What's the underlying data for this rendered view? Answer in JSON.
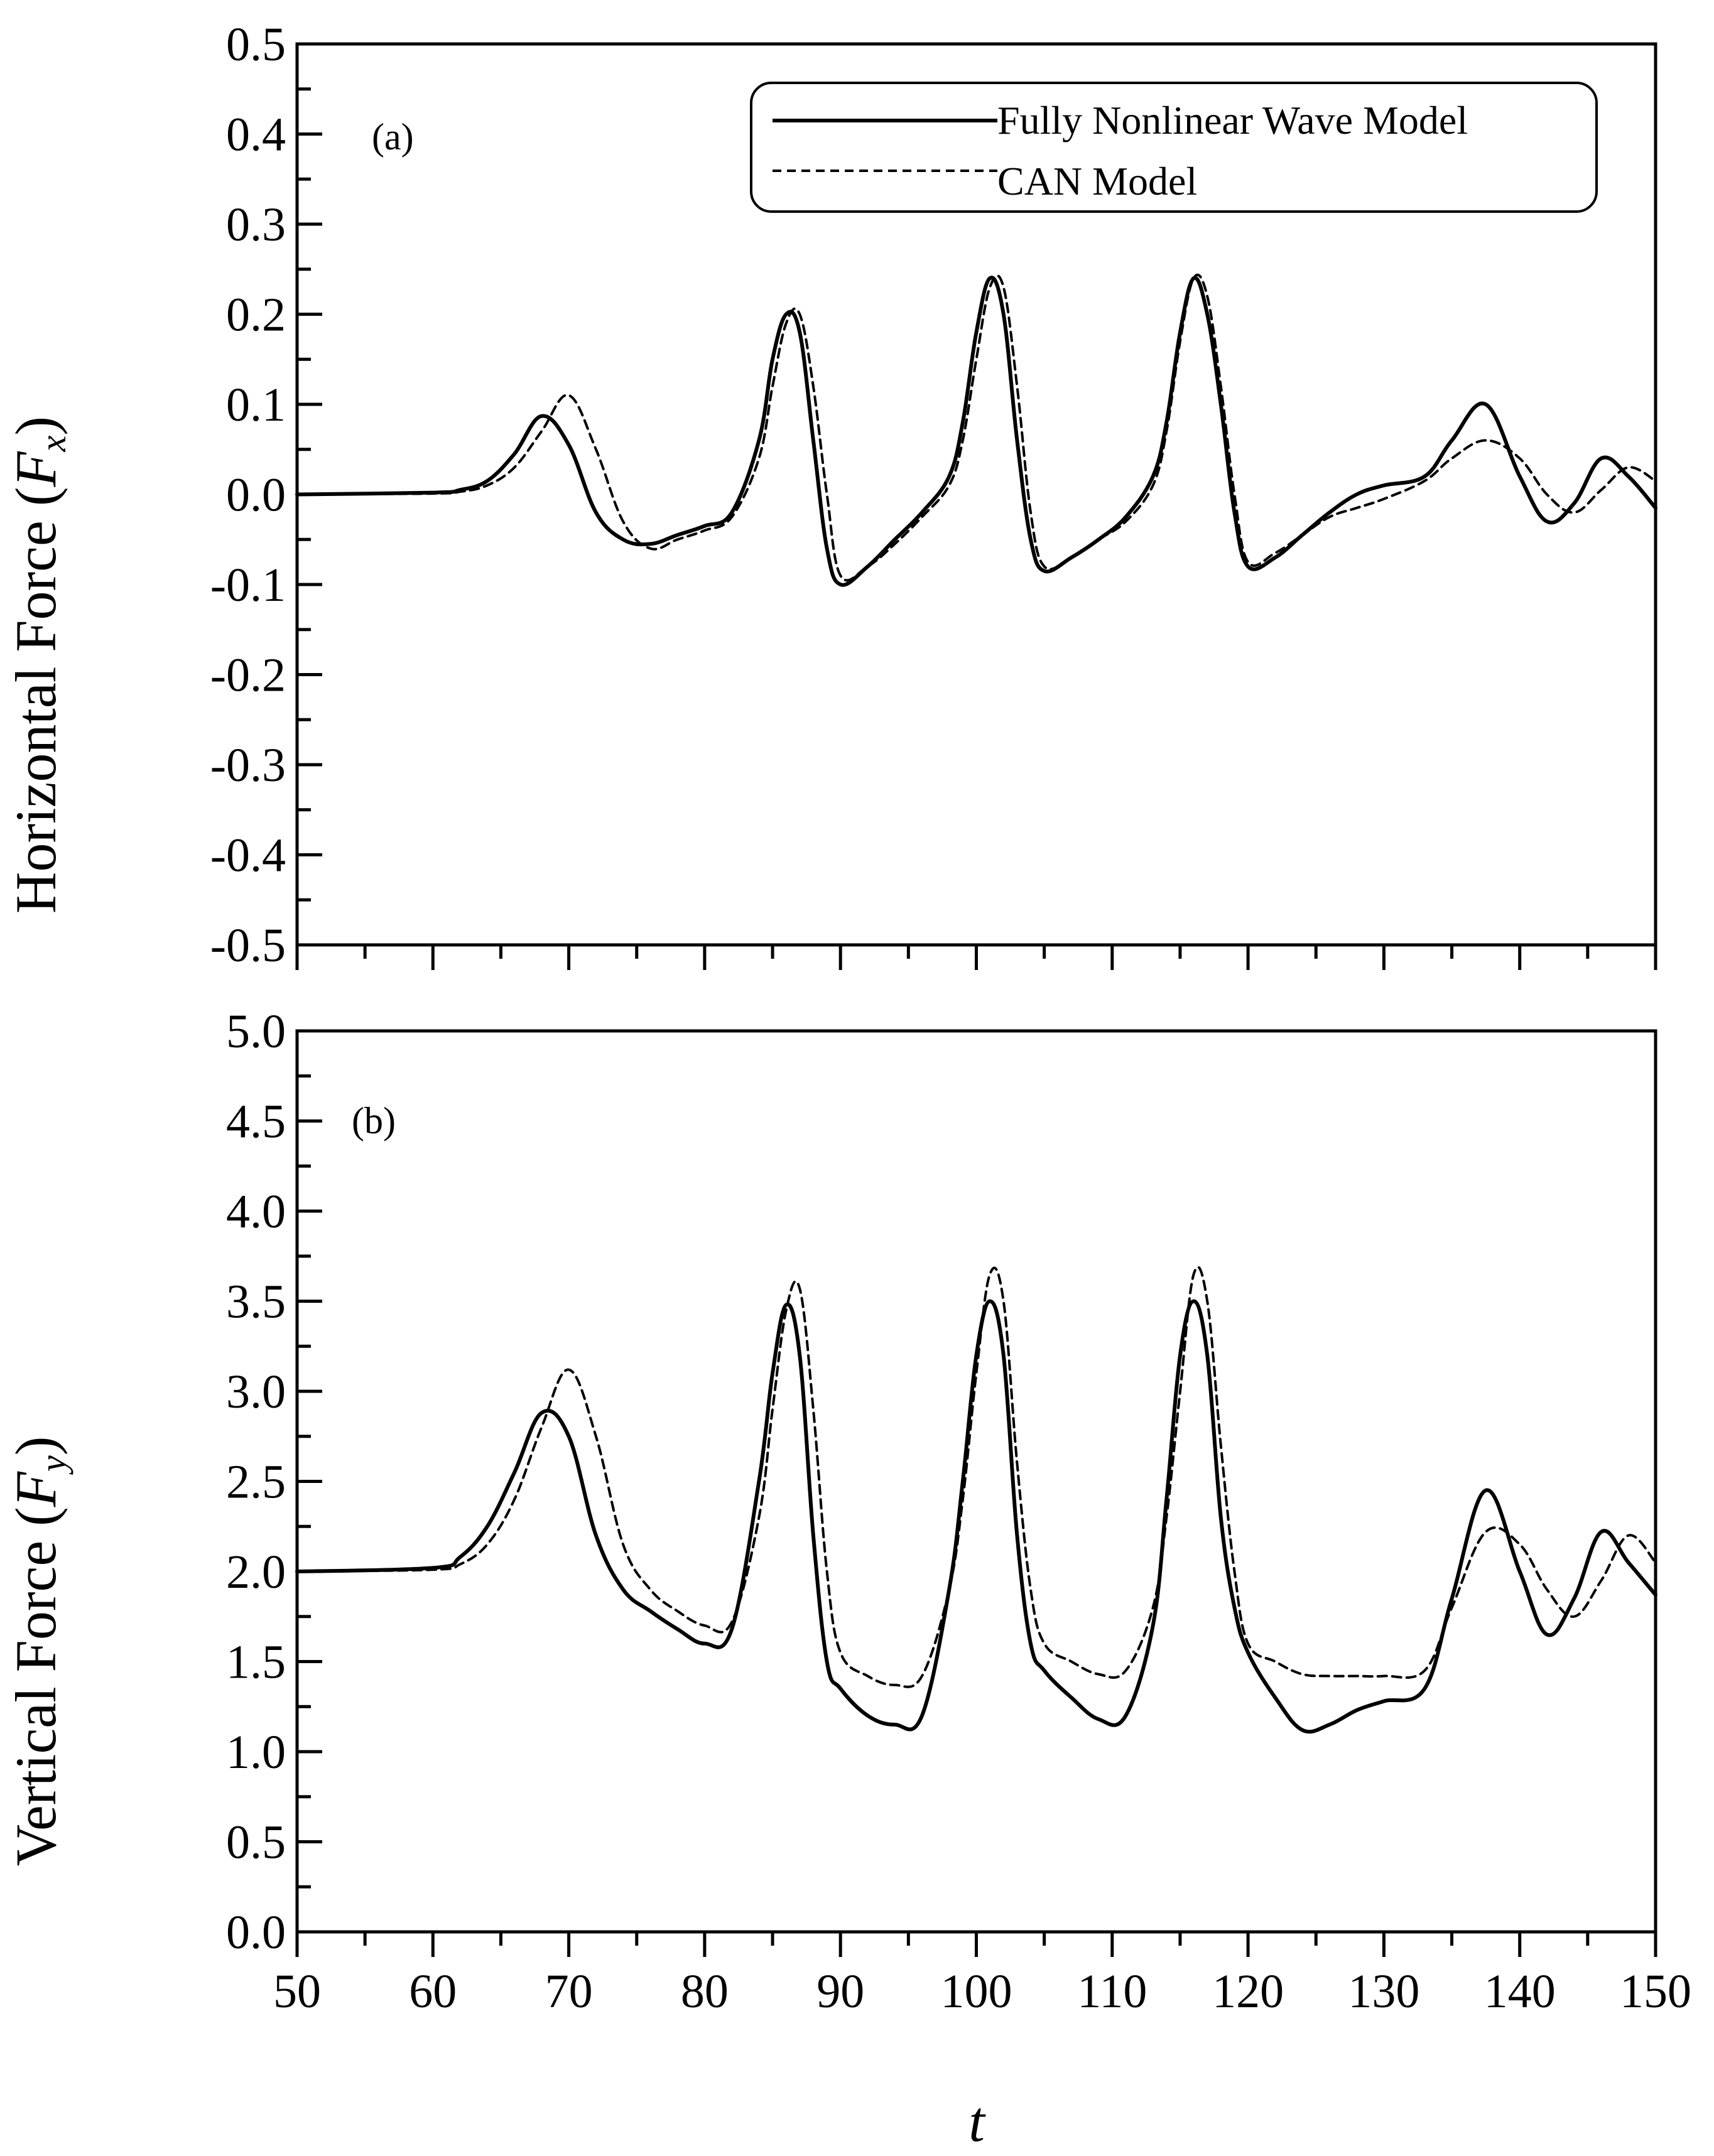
{
  "chart_data": [
    {
      "type": "line",
      "panel_label": "(a)",
      "xlabel": "",
      "ylabel": "Horizontal Force (",
      "ylabel_var": "F",
      "ylabel_sub": "x",
      "ylabel_close": ")",
      "xlim": [
        50,
        150
      ],
      "ylim": [
        -0.5,
        0.5
      ],
      "y_ticks": [
        "-0.5",
        "-0.4",
        "-0.3",
        "-0.2",
        "-0.1",
        "0.0",
        "0.1",
        "0.2",
        "0.3",
        "0.4",
        "0.5"
      ],
      "grid": false,
      "legend_position": "top-right",
      "series": [
        {
          "name": "Fully Nonlinear Wave Model",
          "style": "solid",
          "x": [
            50,
            60,
            62,
            64,
            66,
            68,
            70,
            72,
            74,
            76,
            78,
            80,
            82,
            84,
            85,
            86,
            87,
            88,
            89,
            90,
            92,
            94,
            96,
            98,
            99,
            100,
            101,
            102,
            103,
            104,
            105,
            107,
            109,
            111,
            113,
            114,
            115,
            116,
            117,
            118,
            119,
            120,
            122,
            124,
            126,
            128,
            130,
            133,
            135,
            137.5,
            140,
            142,
            144,
            146,
            148,
            150
          ],
          "y": [
            0,
            0.002,
            0.005,
            0.015,
            0.045,
            0.087,
            0.055,
            -0.02,
            -0.05,
            -0.055,
            -0.045,
            -0.035,
            -0.02,
            0.06,
            0.15,
            0.2,
            0.18,
            0.06,
            -0.06,
            -0.1,
            -0.08,
            -0.05,
            -0.02,
            0.02,
            0.08,
            0.18,
            0.24,
            0.2,
            0.06,
            -0.05,
            -0.085,
            -0.07,
            -0.05,
            -0.025,
            0.02,
            0.08,
            0.18,
            0.24,
            0.2,
            0.1,
            -0.02,
            -0.08,
            -0.07,
            -0.045,
            -0.02,
            0,
            0.01,
            0.02,
            0.06,
            0.1,
            0.02,
            -0.03,
            -0.01,
            0.04,
            0.02,
            -0.015
          ]
        },
        {
          "name": "CAN Model",
          "style": "dashed",
          "x": [
            50,
            60,
            62,
            64,
            66,
            68,
            70,
            72,
            74,
            76,
            78,
            80,
            82,
            84,
            85,
            86,
            87,
            88,
            89,
            90,
            92,
            94,
            96,
            98,
            99,
            100,
            101,
            102,
            103,
            104,
            105,
            107,
            109,
            111,
            113,
            114,
            115,
            116,
            117,
            118,
            119,
            120,
            122,
            124,
            126,
            128,
            130,
            133,
            135,
            137.5,
            140,
            142,
            144,
            146,
            148,
            150
          ],
          "y": [
            0,
            0.001,
            0.003,
            0.01,
            0.03,
            0.07,
            0.11,
            0.05,
            -0.03,
            -0.06,
            -0.05,
            -0.04,
            -0.025,
            0.04,
            0.12,
            0.19,
            0.2,
            0.12,
            0,
            -0.09,
            -0.08,
            -0.055,
            -0.025,
            0.01,
            0.06,
            0.15,
            0.23,
            0.23,
            0.12,
            -0.02,
            -0.08,
            -0.07,
            -0.05,
            -0.03,
            0.01,
            0.07,
            0.17,
            0.24,
            0.22,
            0.12,
            0,
            -0.075,
            -0.065,
            -0.045,
            -0.025,
            -0.015,
            -0.005,
            0.015,
            0.04,
            0.06,
            0.04,
            0,
            -0.02,
            0.005,
            0.03,
            0.015
          ]
        }
      ]
    },
    {
      "type": "line",
      "panel_label": "(b)",
      "xlabel": "t",
      "ylabel": "Vertical Force (",
      "ylabel_var": "F",
      "ylabel_sub": "y",
      "ylabel_close": ")",
      "xlim": [
        50,
        150
      ],
      "ylim": [
        0,
        5
      ],
      "x_ticks": [
        "50",
        "60",
        "70",
        "80",
        "90",
        "100",
        "110",
        "120",
        "130",
        "140",
        "150"
      ],
      "y_ticks": [
        "0.0",
        "0.5",
        "1.0",
        "1.5",
        "2.0",
        "2.5",
        "3.0",
        "3.5",
        "4.0",
        "4.5",
        "5.0"
      ],
      "grid": false,
      "series": [
        {
          "name": "Fully Nonlinear Wave Model",
          "style": "solid",
          "x": [
            50,
            60,
            62,
            64,
            66,
            68,
            70,
            72,
            74,
            76,
            78,
            80,
            82,
            84,
            85,
            86,
            87,
            88,
            89,
            90,
            92,
            94,
            96,
            98,
            99,
            100,
            101,
            102,
            103,
            104,
            105,
            107,
            109,
            111,
            113,
            114,
            115,
            116,
            117,
            118,
            119,
            120,
            122,
            124,
            126,
            128,
            130,
            133,
            135,
            137.5,
            140,
            142,
            144,
            146,
            148,
            150
          ],
          "y": [
            2,
            2.02,
            2.08,
            2.25,
            2.55,
            2.88,
            2.75,
            2.2,
            1.9,
            1.78,
            1.68,
            1.6,
            1.68,
            2.5,
            3.1,
            3.48,
            3.2,
            2.2,
            1.5,
            1.35,
            1.2,
            1.15,
            1.2,
            1.9,
            2.5,
            3.2,
            3.5,
            3.2,
            2.2,
            1.6,
            1.45,
            1.3,
            1.18,
            1.2,
            1.7,
            2.4,
            3.2,
            3.5,
            3.2,
            2.3,
            1.8,
            1.55,
            1.3,
            1.12,
            1.15,
            1.23,
            1.28,
            1.35,
            1.85,
            2.45,
            2,
            1.65,
            1.85,
            2.22,
            2.05,
            1.87
          ]
        },
        {
          "name": "CAN Model",
          "style": "dashed",
          "x": [
            50,
            60,
            62,
            64,
            66,
            68,
            70,
            72,
            74,
            76,
            78,
            80,
            82,
            84,
            85,
            86,
            87,
            88,
            89,
            90,
            92,
            94,
            96,
            98,
            99,
            100,
            101,
            102,
            103,
            104,
            105,
            107,
            109,
            111,
            113,
            114,
            115,
            116,
            117,
            118,
            119,
            120,
            122,
            124,
            126,
            128,
            130,
            133,
            135,
            137.5,
            140,
            142,
            144,
            146,
            148,
            150
          ],
          "y": [
            2,
            2.01,
            2.04,
            2.15,
            2.4,
            2.8,
            3.12,
            2.75,
            2.15,
            1.9,
            1.78,
            1.7,
            1.72,
            2.3,
            2.9,
            3.45,
            3.57,
            2.9,
            2.0,
            1.55,
            1.42,
            1.37,
            1.42,
            1.9,
            2.4,
            3.1,
            3.65,
            3.5,
            2.6,
            1.9,
            1.6,
            1.5,
            1.43,
            1.45,
            1.8,
            2.3,
            3.0,
            3.65,
            3.5,
            2.7,
            2.0,
            1.6,
            1.5,
            1.43,
            1.42,
            1.42,
            1.42,
            1.45,
            1.8,
            2.22,
            2.15,
            1.9,
            1.75,
            1.95,
            2.2,
            2.05
          ]
        }
      ]
    }
  ]
}
